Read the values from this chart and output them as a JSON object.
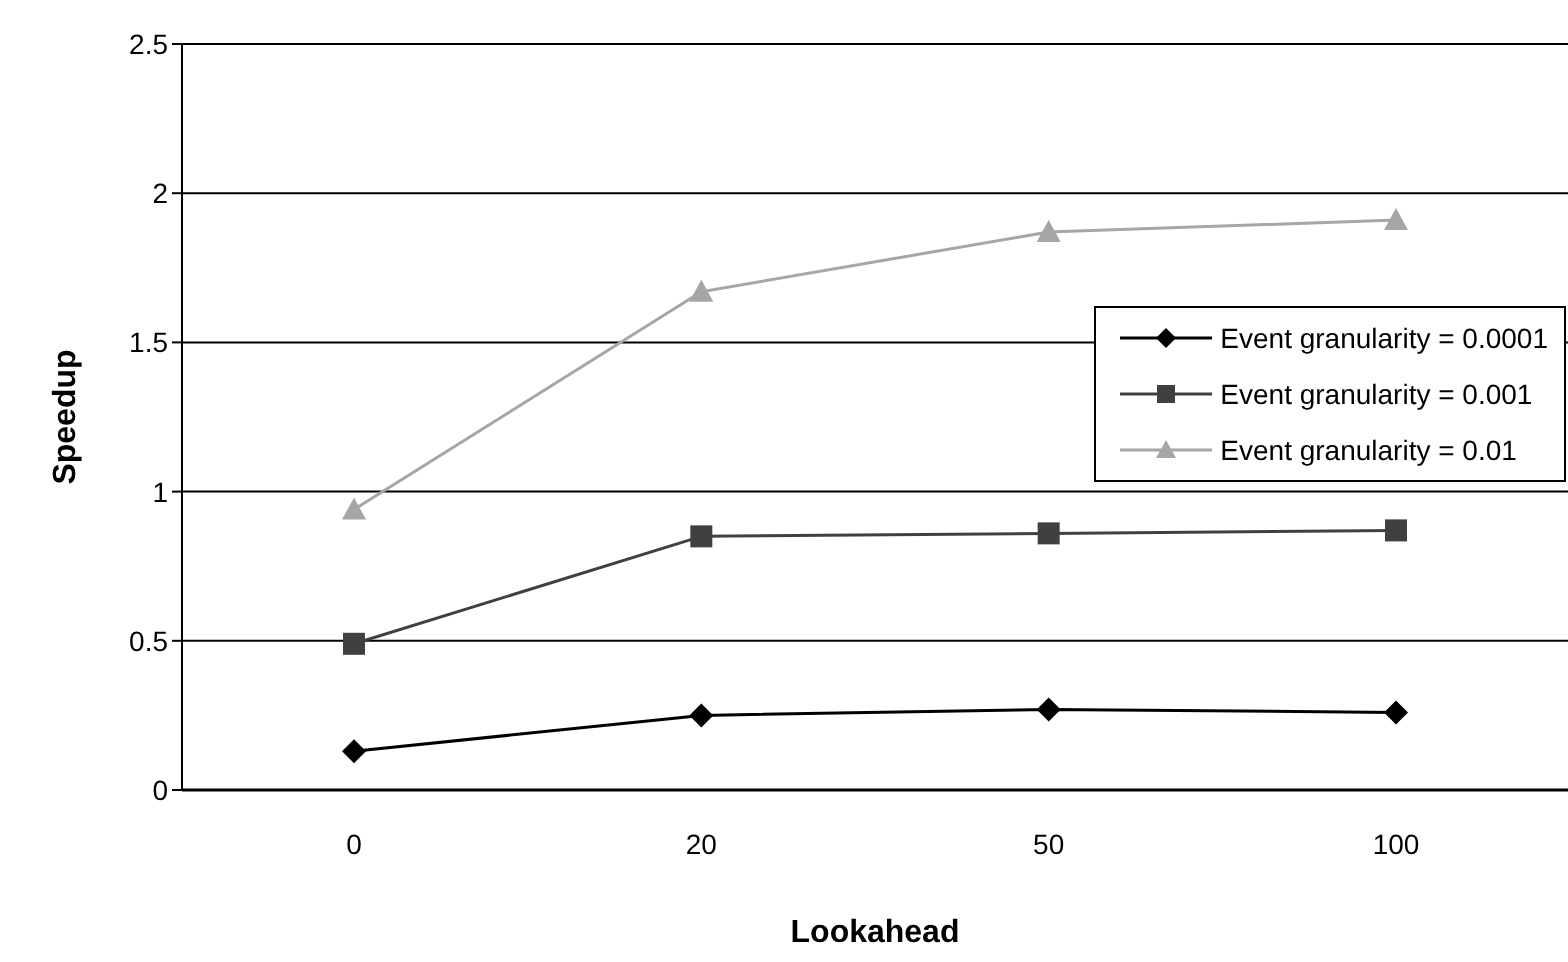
{
  "chart_data": {
    "type": "line",
    "xlabel": "Lookahead",
    "ylabel": "Speedup",
    "categories": [
      "0",
      "20",
      "50",
      "100"
    ],
    "series": [
      {
        "name": "Event granularity = 0.0001",
        "color": "#000000",
        "marker": "diamond",
        "values": [
          0.13,
          0.25,
          0.27,
          0.26
        ]
      },
      {
        "name": "Event granularity = 0.001",
        "color": "#404040",
        "marker": "square",
        "values": [
          0.49,
          0.85,
          0.86,
          0.87
        ]
      },
      {
        "name": "Event granularity = 0.01",
        "color": "#a6a6a6",
        "marker": "triangle",
        "values": [
          0.94,
          1.67,
          1.87,
          1.91
        ]
      }
    ],
    "ylim": [
      0,
      2.5
    ],
    "yticks": [
      0,
      0.5,
      1,
      1.5,
      2,
      2.5
    ],
    "grid": "y",
    "legend": "right"
  }
}
